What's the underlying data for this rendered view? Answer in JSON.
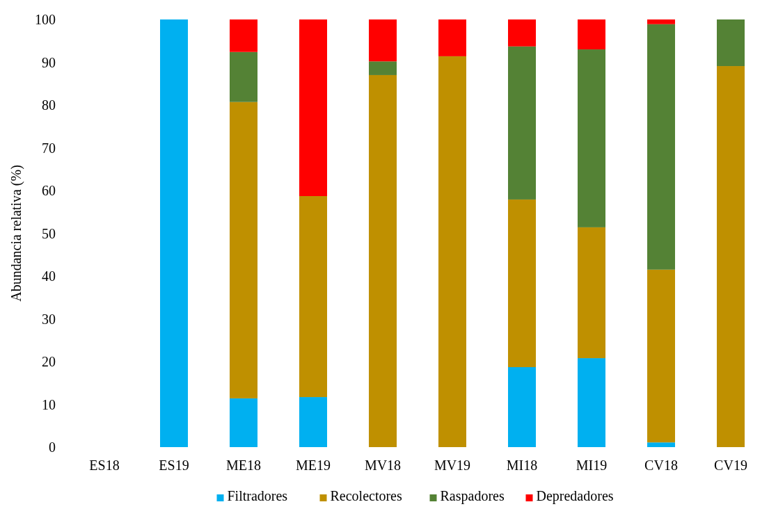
{
  "chart_data": {
    "type": "bar",
    "stacked": true,
    "ylabel": "Abundancia relativa (%)",
    "categories": [
      "ES18",
      "ES19",
      "ME18",
      "ME19",
      "MV18",
      "MV19",
      "MI18",
      "MI19",
      "CV18",
      "CV19"
    ],
    "series": [
      {
        "name": "Filtradores",
        "color": "#00b0f0",
        "values": [
          0,
          100,
          11.4,
          11.7,
          0,
          0,
          18.7,
          20.8,
          1.1,
          0
        ]
      },
      {
        "name": "Recolectores",
        "color": "#bf9000",
        "values": [
          0,
          0,
          69.3,
          47.0,
          87.0,
          91.4,
          39.2,
          30.6,
          40.4,
          89.1
        ]
      },
      {
        "name": "Raspadores",
        "color": "#548235",
        "values": [
          0,
          0,
          11.7,
          0,
          3.2,
          0,
          35.8,
          41.6,
          57.4,
          10.9
        ]
      },
      {
        "name": "Depredadores",
        "color": "#ff0000",
        "values": [
          0,
          0,
          7.6,
          41.3,
          9.8,
          8.6,
          6.3,
          7.0,
          1.1,
          0
        ]
      }
    ],
    "ylim": [
      0,
      100
    ],
    "yticks": [
      0,
      10,
      20,
      30,
      40,
      50,
      60,
      70,
      80,
      90,
      100
    ],
    "grid": false,
    "legend": "bottom"
  }
}
